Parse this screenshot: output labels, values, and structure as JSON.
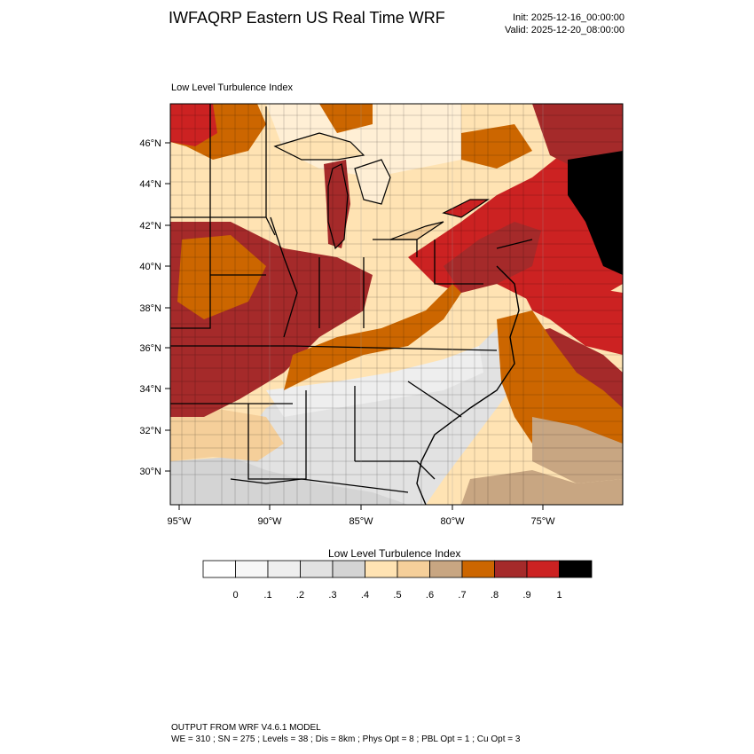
{
  "header": {
    "title": "IWFAQRP Eastern US Real Time WRF",
    "init": "Init: 2025-12-16_00:00:00",
    "valid": "Valid: 2025-12-20_08:00:00"
  },
  "map": {
    "subtitle": "Low Level Turbulence Index",
    "lat_labels": [
      "46°N",
      "44°N",
      "42°N",
      "40°N",
      "38°N",
      "36°N",
      "34°N",
      "32°N",
      "30°N"
    ],
    "lon_labels": [
      "95°W",
      "90°W",
      "85°W",
      "80°W",
      "75°W"
    ]
  },
  "colorbar": {
    "title": "Low Level Turbulence Index",
    "tick_labels": [
      "0",
      ".1",
      ".2",
      ".3",
      ".4",
      ".5",
      ".6",
      ".7",
      ".8",
      ".9",
      "1"
    ],
    "colors": [
      "#ffffff",
      "#f7f7f7",
      "#eeeeee",
      "#e2e2e2",
      "#d4d4d4",
      "#ffe3b3",
      "#f5cf9a",
      "#c8a682",
      "#cc6600",
      "#a52a2a",
      "#cc2222",
      "#000000"
    ]
  },
  "footer": {
    "line1": "OUTPUT FROM WRF V4.6.1 MODEL",
    "line2": "WE = 310 ; SN = 275 ; Levels = 38 ; Dis = 8km ; Phys Opt = 8 ; PBL Opt = 1 ; Cu Opt = 3"
  }
}
